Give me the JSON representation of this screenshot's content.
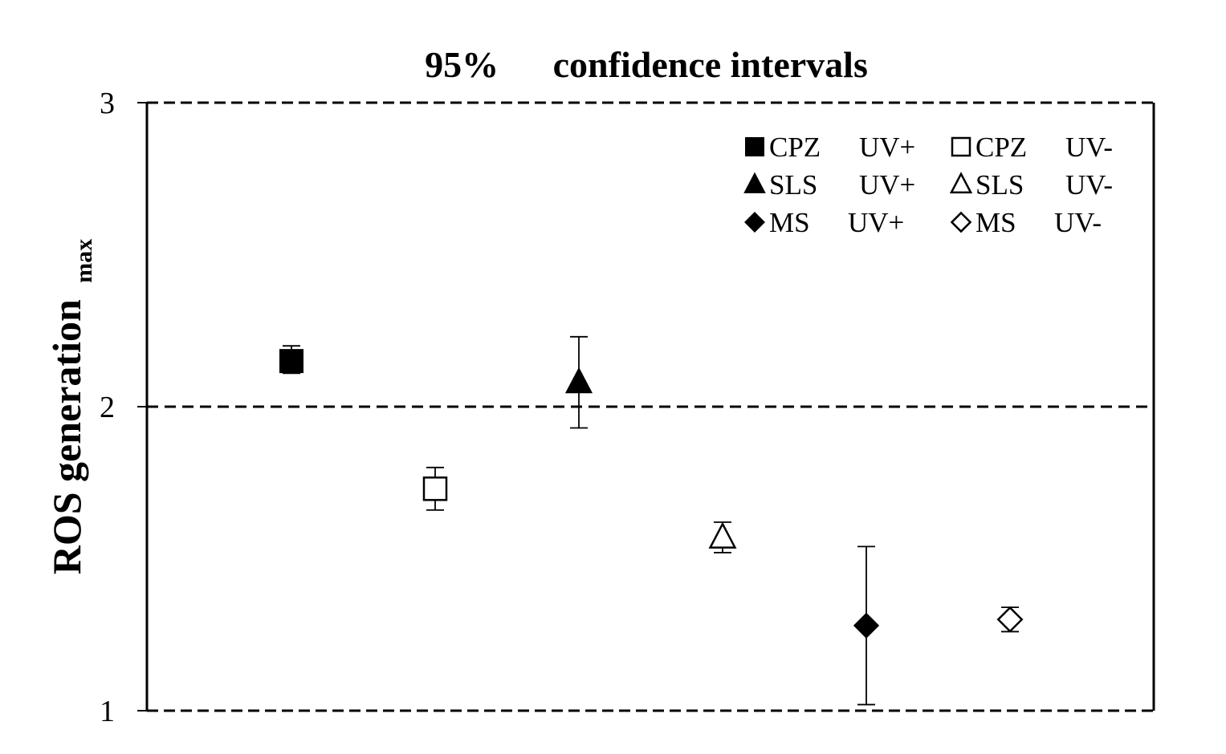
{
  "chart_data": {
    "type": "scatter",
    "title_main": "95%",
    "title_rest": "confidence intervals",
    "ylabel_main": "ROS generation",
    "ylabel_sub": "max",
    "xlabel": "",
    "ylim": [
      1,
      3
    ],
    "yticks": [
      "1",
      "2",
      "3"
    ],
    "reference_line": 2,
    "grid": false,
    "legend_position": "top-right",
    "series": [
      {
        "name": "CPZ",
        "condition": "UV+",
        "marker": "square",
        "filled": true,
        "x": 1,
        "y": 2.15,
        "ci_low": 2.11,
        "ci_high": 2.2
      },
      {
        "name": "CPZ",
        "condition": "UV-",
        "marker": "square",
        "filled": false,
        "x": 2,
        "y": 1.73,
        "ci_low": 1.66,
        "ci_high": 1.8
      },
      {
        "name": "SLS",
        "condition": "UV+",
        "marker": "triangle",
        "filled": true,
        "x": 3,
        "y": 2.08,
        "ci_low": 1.93,
        "ci_high": 2.23
      },
      {
        "name": "SLS",
        "condition": "UV-",
        "marker": "triangle",
        "filled": false,
        "x": 4,
        "y": 1.57,
        "ci_low": 1.52,
        "ci_high": 1.62
      },
      {
        "name": "MS",
        "condition": "UV+",
        "marker": "diamond",
        "filled": true,
        "x": 5,
        "y": 1.28,
        "ci_low": 1.02,
        "ci_high": 1.54
      },
      {
        "name": "MS",
        "condition": "UV-",
        "marker": "diamond",
        "filled": false,
        "x": 6,
        "y": 1.3,
        "ci_low": 1.26,
        "ci_high": 1.34
      }
    ],
    "colors": {
      "ink": "#000000",
      "background": "#ffffff"
    }
  }
}
